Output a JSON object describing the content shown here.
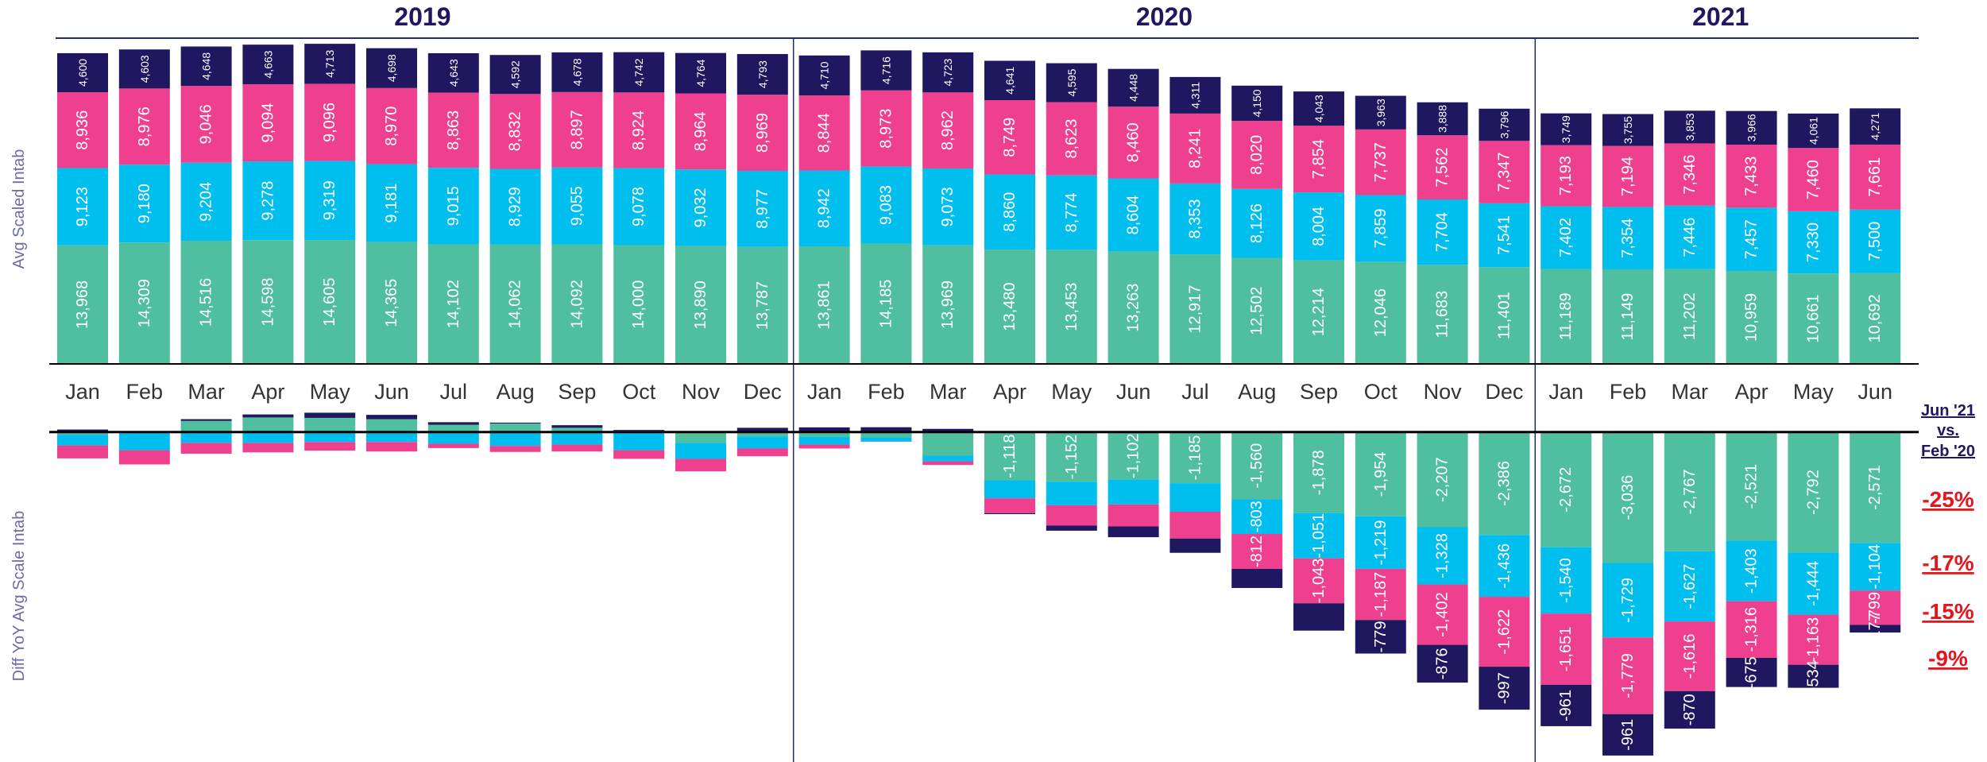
{
  "chart_data": [
    {
      "type": "bar",
      "stacked": true,
      "ylabel": "Avg Scaled Intab",
      "groups": [
        {
          "label": "2019",
          "count": 12
        },
        {
          "label": "2020",
          "count": 12
        },
        {
          "label": "2021",
          "count": 6
        }
      ],
      "categories": [
        "Jan",
        "Feb",
        "Mar",
        "Apr",
        "May",
        "Jun",
        "Jul",
        "Aug",
        "Sep",
        "Oct",
        "Nov",
        "Dec",
        "Jan",
        "Feb",
        "Mar",
        "Apr",
        "May",
        "Jun",
        "Jul",
        "Aug",
        "Sep",
        "Oct",
        "Nov",
        "Dec",
        "Jan",
        "Feb",
        "Mar",
        "Apr",
        "May",
        "Jun"
      ],
      "ylim": [
        0,
        38400
      ],
      "series": [
        {
          "color": "#4fbf9f",
          "values": [
            13968,
            14309,
            14516,
            14598,
            14605,
            14365,
            14102,
            14062,
            14092,
            14000,
            13890,
            13787,
            13861,
            14185,
            13969,
            13480,
            13453,
            13263,
            12917,
            12502,
            12214,
            12046,
            11683,
            11401,
            11189,
            11149,
            11202,
            10959,
            10661,
            10692
          ],
          "value_labels": [
            "13,968",
            "14,309",
            "14,516",
            "14,598",
            "14,605",
            "14,365",
            "14,102",
            "14,062",
            "14,092",
            "14,000",
            "13,890",
            "13,787",
            "13,861",
            "14,185",
            "13,969",
            "13,480",
            "13,453",
            "13,263",
            "12,917",
            "12,502",
            "12,214",
            "12,046",
            "11,683",
            "11,401",
            "11,189",
            "11,149",
            "11,202",
            "10,959",
            "10,661",
            "10,692"
          ]
        },
        {
          "color": "#00bfef",
          "values": [
            9123,
            9180,
            9204,
            9278,
            9319,
            9181,
            9015,
            8929,
            9055,
            9078,
            9032,
            8977,
            8942,
            9083,
            9073,
            8860,
            8774,
            8604,
            8353,
            8126,
            8004,
            7859,
            7704,
            7541,
            7402,
            7354,
            7446,
            7457,
            7330,
            7500
          ],
          "value_labels": [
            "9,123",
            "9,180",
            "9,204",
            "9,278",
            "9,319",
            "9,181",
            "9,015",
            "8,929",
            "9,055",
            "9,078",
            "9,032",
            "8,977",
            "8,942",
            "9,083",
            "9,073",
            "8,860",
            "8,774",
            "8,604",
            "8,353",
            "8,126",
            "8,004",
            "7,859",
            "7,704",
            "7,541",
            "7,402",
            "7,354",
            "7,446",
            "7,457",
            "7,330",
            "7,500"
          ]
        },
        {
          "color": "#ef3f8f",
          "values": [
            8936,
            8976,
            9046,
            9094,
            9096,
            8970,
            8863,
            8832,
            8897,
            8924,
            8964,
            8969,
            8844,
            8973,
            8962,
            8749,
            8623,
            8460,
            8241,
            8020,
            7854,
            7737,
            7562,
            7347,
            7193,
            7194,
            7346,
            7433,
            7460,
            7661
          ],
          "value_labels": [
            "8,936",
            "8,976",
            "9,046",
            "9,094",
            "9,096",
            "8,970",
            "8,863",
            "8,832",
            "8,897",
            "8,924",
            "8,964",
            "8,969",
            "8,844",
            "8,973",
            "8,962",
            "8,749",
            "8,623",
            "8,460",
            "8,241",
            "8,020",
            "7,854",
            "7,737",
            "7,562",
            "7,347",
            "7,193",
            "7,194",
            "7,346",
            "7,433",
            "7,460",
            "7,661"
          ]
        },
        {
          "color": "#1f1760",
          "values": [
            4600,
            4603,
            4648,
            4663,
            4713,
            4698,
            4643,
            4592,
            4678,
            4742,
            4764,
            4793,
            4710,
            4716,
            4723,
            4641,
            4595,
            4448,
            4311,
            4150,
            4043,
            3963,
            3888,
            3796,
            3749,
            3755,
            3853,
            3966,
            4061,
            4271
          ],
          "value_labels": [
            "4,600",
            "4,603",
            "4,648",
            "4,663",
            "4,713",
            "4,698",
            "4,643",
            "4,592",
            "4,678",
            "4,742",
            "4,764",
            "4,793",
            "4,710",
            "4,716",
            "4,723",
            "4,641",
            "4,595",
            "4,448",
            "4,311",
            "4,150",
            "4,043",
            "3,963",
            "3,888",
            "3,796",
            "3,749",
            "3,755",
            "3,853",
            "3,966",
            "4,061",
            "4,271"
          ]
        }
      ]
    },
    {
      "type": "bar",
      "stacked": true,
      "ylabel": "Diff YoY Avg Scale Intab",
      "ylim": [
        -7600,
        900
      ],
      "series": [
        {
          "color": "#4fbf9f",
          "values": [
            -60,
            -20,
            260,
            340,
            330,
            300,
            170,
            200,
            100,
            30,
            -250,
            -100,
            -107,
            -124,
            -547,
            -1118,
            -1152,
            -1102,
            -1185,
            -1560,
            -1878,
            -1954,
            -2207,
            -2386,
            -2672,
            -3036,
            -2767,
            -2521,
            -2792,
            -2571
          ],
          "value_labels": [
            null,
            null,
            null,
            null,
            null,
            null,
            null,
            null,
            null,
            null,
            null,
            null,
            null,
            null,
            null,
            "-1,118",
            "-1,152",
            "-1,102",
            "-1,185",
            "-1,560",
            "-1,878",
            "-1,954",
            "-2,207",
            "-2,386",
            "-2,672",
            "-3,036",
            "-2,767",
            "-2,521",
            "-2,792",
            "-2,571"
          ]
        },
        {
          "color": "#00bfef",
          "values": [
            -250,
            -400,
            -250,
            -250,
            -230,
            -230,
            -270,
            -320,
            -290,
            -420,
            -370,
            -280,
            -181,
            -97,
            -131,
            -418,
            -545,
            -577,
            -662,
            -803,
            -1051,
            -1219,
            -1328,
            -1436,
            -1540,
            -1729,
            -1627,
            -1403,
            -1444,
            -1104
          ],
          "value_labels": [
            null,
            null,
            null,
            null,
            null,
            null,
            null,
            null,
            null,
            null,
            null,
            null,
            null,
            null,
            null,
            null,
            null,
            null,
            null,
            "-803",
            "-1,051",
            "-1,219",
            "-1,328",
            "-1,436",
            "-1,540",
            "-1,729",
            "-1,627",
            "-1,403",
            "-1,444",
            "-1,104"
          ]
        },
        {
          "color": "#ef3f8f",
          "values": [
            -300,
            -330,
            -250,
            -220,
            -200,
            -220,
            -100,
            -140,
            -160,
            -200,
            -290,
            -180,
            -92,
            -3,
            -84,
            -345,
            -473,
            -510,
            -622,
            -812,
            -1043,
            -1187,
            -1402,
            -1622,
            -1651,
            -1779,
            -1616,
            -1316,
            -1163,
            -799
          ],
          "value_labels": [
            null,
            null,
            null,
            null,
            null,
            null,
            null,
            null,
            null,
            null,
            null,
            null,
            null,
            null,
            null,
            null,
            null,
            null,
            null,
            "-812",
            "-1,043",
            "-1,187",
            "-1,402",
            "-1,622",
            "-1,651",
            "-1,779",
            "-1,616",
            "-1,316",
            "-1,163",
            "-799"
          ]
        },
        {
          "color": "#1f1760",
          "values": [
            60,
            20,
            40,
            70,
            120,
            100,
            60,
            20,
            60,
            20,
            10,
            100,
            110,
            113,
            75,
            -22,
            -118,
            -250,
            -332,
            -442,
            -635,
            -779,
            -876,
            -997,
            -961,
            -961,
            -870,
            -675,
            -534,
            -177
          ],
          "value_labels": [
            null,
            null,
            null,
            null,
            null,
            null,
            null,
            null,
            null,
            null,
            null,
            null,
            null,
            null,
            null,
            null,
            null,
            null,
            null,
            null,
            null,
            "-779",
            "-876",
            "-997",
            "-961",
            "-961",
            "-870",
            "-675",
            "-534",
            "-177"
          ]
        }
      ],
      "annotation": {
        "title_lines": [
          "Jun '21",
          "vs.",
          "Feb '20"
        ],
        "values": [
          -25,
          -17,
          -15,
          -9
        ],
        "value_labels": [
          "-25%",
          "-17%",
          "-15%",
          "-9%"
        ]
      }
    }
  ]
}
